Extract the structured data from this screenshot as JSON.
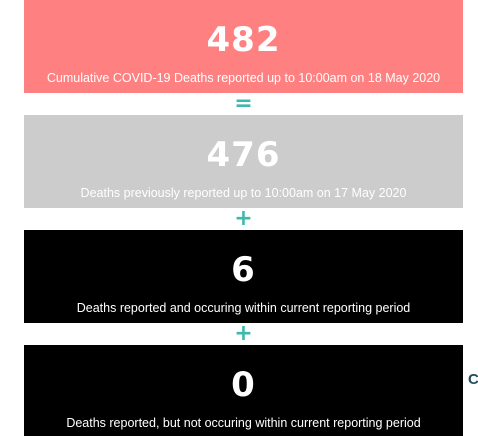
{
  "colors": {
    "total_bg": "#ff8080",
    "previous_bg": "#cccccc",
    "current_bg": "#000000",
    "backlog_bg": "#000000",
    "operator": "#3cb8ad",
    "edge_text": "#1f4e5a"
  },
  "tiles": {
    "total": {
      "value": "482",
      "caption": "Cumulative COVID-19 Deaths reported up to 10:00am on 18 May 2020"
    },
    "previous": {
      "value": "476",
      "caption": "Deaths previously reported up to 10:00am on 17 May 2020"
    },
    "current": {
      "value": "6",
      "caption": "Deaths reported and occuring within current reporting period"
    },
    "backlog": {
      "value": "0",
      "caption": "Deaths reported, but not occuring within current reporting period"
    }
  },
  "operators": {
    "equals": "=",
    "plus_1": "+",
    "plus_2": "+"
  },
  "edge": {
    "glyph": "C"
  }
}
